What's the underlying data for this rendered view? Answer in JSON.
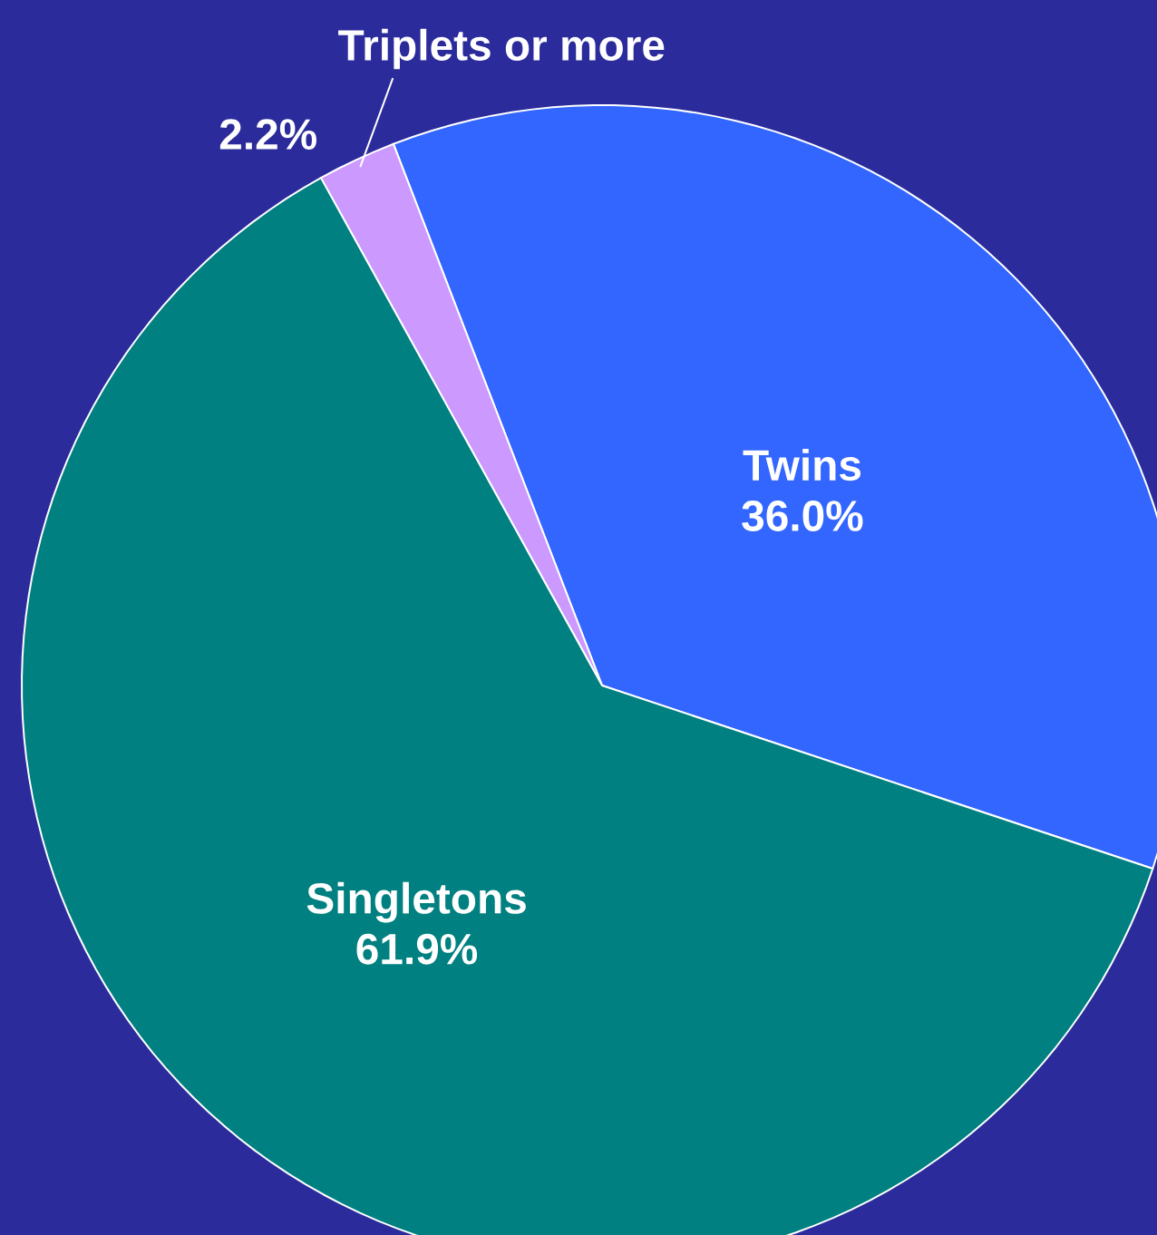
{
  "chart_data": {
    "type": "pie",
    "categories": [
      "Twins",
      "Triplets or more",
      "Singletons"
    ],
    "values": [
      36.0,
      2.2,
      61.9
    ],
    "value_labels": [
      "36.0%",
      "2.2%",
      "61.9%"
    ],
    "colors": [
      "#3366ff",
      "#cc99ff",
      "#008080"
    ]
  }
}
